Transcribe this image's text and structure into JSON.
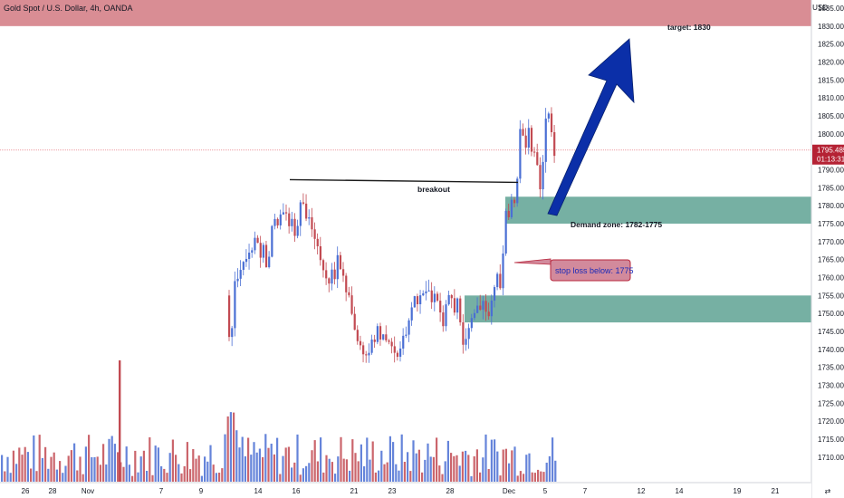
{
  "header": {
    "symbol_title": "Gold Spot / U.S. Dollar, 4h, OANDA",
    "currency": "USD"
  },
  "colors": {
    "up": "#4a6fd4",
    "down": "#c24a52",
    "target_zone": "#d98d94",
    "demand_zone": "#76b0a3",
    "arrow": "#0b2fa8",
    "price_line": "#e87c84",
    "price_tag": "#b52234",
    "stoploss_fill": "#d28a9c",
    "stoploss_border": "#b8283e"
  },
  "annotations": {
    "target": "target: 1830",
    "breakout": "breakout",
    "demand_zone": "Demand zone: 1782-1775",
    "stop_loss": "stop loss below: 1775"
  },
  "price_tag": {
    "price": "1795.485",
    "countdown": "01:13:31"
  },
  "chart_data": {
    "type": "candlestick",
    "symbol": "Gold Spot / U.S. Dollar",
    "timeframe": "4h",
    "ylim": [
      1708,
      1848
    ],
    "y_ticks": [
      1710,
      1715,
      1720,
      1725,
      1730,
      1735,
      1740,
      1745,
      1750,
      1755,
      1760,
      1765,
      1770,
      1775,
      1780,
      1785,
      1790,
      1795,
      1800,
      1805,
      1810,
      1815,
      1820,
      1825,
      1830,
      1835
    ],
    "x_ticks": [
      "26",
      "28",
      "Nov",
      "7",
      "9",
      "14",
      "16",
      "21",
      "23",
      "28",
      "Dec",
      "5",
      "7",
      "12",
      "14",
      "19",
      "21"
    ],
    "current_price": 1795.485,
    "target_zone": [
      1830,
      1848
    ],
    "demand_zones": [
      [
        1775,
        1782.5
      ],
      [
        1747.5,
        1755
      ]
    ],
    "breakout_level": 1787,
    "close_path": [
      [
        0,
        1742
      ],
      [
        10,
        1743
      ],
      [
        20,
        1742
      ],
      [
        30,
        1744
      ],
      [
        40,
        1743
      ],
      [
        50,
        1745
      ],
      [
        60,
        1746
      ],
      [
        70,
        1745
      ],
      [
        80,
        1747
      ],
      [
        90,
        1746
      ],
      [
        100,
        1748
      ],
      [
        110,
        1747
      ],
      [
        120,
        1749
      ],
      [
        130,
        1748
      ],
      [
        140,
        1748
      ],
      [
        150,
        1749
      ],
      [
        160,
        1749
      ],
      [
        170,
        1750
      ],
      [
        180,
        1749
      ],
      [
        190,
        1751
      ],
      [
        200,
        1750
      ],
      [
        210,
        1750
      ],
      [
        220,
        1751
      ],
      [
        230,
        1751
      ],
      [
        240,
        1752
      ],
      [
        246,
        1751
      ],
      [
        250,
        1755
      ],
      [
        253,
        1740
      ],
      [
        256,
        1750
      ],
      [
        259,
        1762
      ],
      [
        262,
        1760
      ],
      [
        266,
        1765
      ],
      [
        270,
        1763
      ],
      [
        274,
        1768
      ],
      [
        278,
        1768
      ],
      [
        282,
        1772
      ],
      [
        286,
        1766
      ],
      [
        290,
        1770
      ],
      [
        294,
        1762
      ],
      [
        298,
        1771
      ],
      [
        302,
        1776
      ],
      [
        306,
        1773
      ],
      [
        310,
        1778
      ],
      [
        314,
        1782
      ],
      [
        317,
        1775
      ],
      [
        320,
        1777
      ],
      [
        324,
        1772
      ],
      [
        328,
        1776
      ],
      [
        332,
        1781
      ],
      [
        336,
        1778
      ],
      [
        340,
        1776
      ],
      [
        344,
        1772
      ],
      [
        348,
        1770
      ],
      [
        352,
        1766
      ],
      [
        356,
        1763
      ],
      [
        360,
        1758
      ],
      [
        364,
        1762
      ],
      [
        368,
        1760
      ],
      [
        372,
        1765
      ],
      [
        376,
        1763
      ],
      [
        380,
        1758
      ],
      [
        384,
        1754
      ],
      [
        388,
        1748
      ],
      [
        392,
        1745
      ],
      [
        396,
        1743
      ],
      [
        400,
        1739
      ],
      [
        404,
        1736
      ],
      [
        408,
        1743
      ],
      [
        412,
        1740
      ],
      [
        416,
        1745
      ],
      [
        420,
        1742
      ],
      [
        424,
        1743
      ],
      [
        428,
        1740
      ],
      [
        432,
        1741
      ],
      [
        436,
        1738
      ],
      [
        440,
        1738
      ],
      [
        444,
        1742
      ],
      [
        448,
        1746
      ],
      [
        452,
        1752
      ],
      [
        456,
        1756
      ],
      [
        460,
        1752
      ],
      [
        464,
        1758
      ],
      [
        468,
        1755
      ],
      [
        472,
        1757
      ],
      [
        476,
        1754
      ],
      [
        480,
        1757
      ],
      [
        484,
        1752
      ],
      [
        488,
        1748
      ],
      [
        492,
        1752
      ],
      [
        496,
        1754
      ],
      [
        500,
        1750
      ],
      [
        504,
        1755
      ],
      [
        508,
        1746
      ],
      [
        512,
        1741
      ],
      [
        516,
        1745
      ],
      [
        520,
        1750
      ],
      [
        524,
        1752
      ],
      [
        528,
        1751
      ],
      [
        532,
        1755
      ],
      [
        536,
        1752
      ],
      [
        540,
        1750
      ],
      [
        544,
        1754
      ],
      [
        548,
        1762
      ],
      [
        552,
        1755
      ],
      [
        555,
        1770
      ],
      [
        558,
        1778
      ],
      [
        561,
        1776
      ],
      [
        564,
        1780
      ],
      [
        568,
        1782
      ],
      [
        571,
        1792
      ],
      [
        574,
        1803
      ],
      [
        577,
        1798
      ],
      [
        580,
        1797
      ],
      [
        583,
        1800
      ],
      [
        586,
        1796
      ],
      [
        590,
        1795
      ],
      [
        594,
        1785
      ],
      [
        597,
        1786
      ],
      [
        600,
        1796
      ],
      [
        603,
        1808
      ],
      [
        606,
        1807
      ],
      [
        609,
        1796
      ],
      [
        613,
        1795
      ]
    ]
  }
}
